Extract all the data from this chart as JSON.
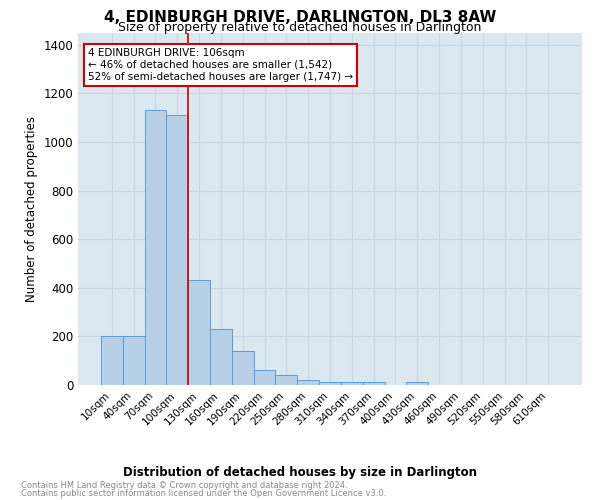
{
  "title": "4, EDINBURGH DRIVE, DARLINGTON, DL3 8AW",
  "subtitle": "Size of property relative to detached houses in Darlington",
  "xlabel": "Distribution of detached houses by size in Darlington",
  "ylabel": "Number of detached properties",
  "categories": [
    "10sqm",
    "40sqm",
    "70sqm",
    "100sqm",
    "130sqm",
    "160sqm",
    "190sqm",
    "220sqm",
    "250sqm",
    "280sqm",
    "310sqm",
    "340sqm",
    "370sqm",
    "400sqm",
    "430sqm",
    "460sqm",
    "490sqm",
    "520sqm",
    "550sqm",
    "580sqm",
    "610sqm"
  ],
  "values": [
    200,
    200,
    1130,
    1110,
    430,
    230,
    140,
    60,
    40,
    20,
    12,
    12,
    12,
    0,
    12,
    0,
    0,
    0,
    0,
    0,
    0
  ],
  "bar_color": "#b8cfe8",
  "bar_edge_color": "#5b9bd5",
  "grid_color": "#c8d4e0",
  "bg_color": "#dce8f0",
  "red_line_x": 3.5,
  "annotation_text": "4 EDINBURGH DRIVE: 106sqm\n← 46% of detached houses are smaller (1,542)\n52% of semi-detached houses are larger (1,747) →",
  "annotation_box_color": "#ffffff",
  "annotation_box_edge": "#cc0000",
  "footnote1": "Contains HM Land Registry data © Crown copyright and database right 2024.",
  "footnote2": "Contains public sector information licensed under the Open Government Licence v3.0.",
  "ylim": [
    0,
    1450
  ],
  "yticks": [
    0,
    200,
    400,
    600,
    800,
    1000,
    1200,
    1400
  ],
  "title_fontsize": 11,
  "subtitle_fontsize": 9
}
